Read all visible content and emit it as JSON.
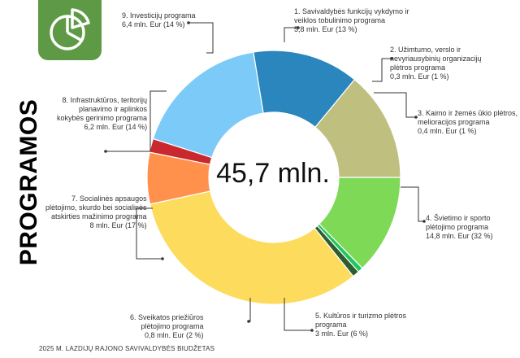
{
  "side_title": "PROGRAMOS",
  "footer": "2025 M. LAZDIJŲ RAJONO SAVIVALDYBĖS BIUDŽETAS",
  "logo_icon": "pie-chart-icon",
  "chart_data": {
    "type": "donut",
    "center_label": "45,7 mln.",
    "unit": "mln. Eur",
    "slices": [
      {
        "name": "1. Savivaldybės funkcijų vykdymo ir veiklos tobulinimo programa",
        "value_label": "5,8 mln. Eur (13 %)",
        "value": 5.8,
        "percent": 13,
        "color": "#7ed957"
      },
      {
        "name": "2. Užimtumo, verslo ir nevyriausybinių organizacijų plėtros programa",
        "value_label": "0,3 mln. Eur (1 %)",
        "value": 0.3,
        "percent": 1,
        "color": "#22c55e"
      },
      {
        "name": "3. Kaimo ir žemės ūkio plėtros, melioracijos programa",
        "value_label": "0,4 mln. Eur (1 %)",
        "value": 0.4,
        "percent": 1,
        "color": "#2f5e2e"
      },
      {
        "name": "4. Švietimo ir sporto plėtojimo programa",
        "value_label": "14,8 mln. Eur (32 %)",
        "value": 14.8,
        "percent": 32,
        "color": "#fddb5c"
      },
      {
        "name": "5. Kultūros ir turizmo plėtros programa",
        "value_label": "3 mln. Eur (6 %)",
        "value": 3.0,
        "percent": 6,
        "color": "#ff914d"
      },
      {
        "name": "6. Sveikatos priežiūros plėtojimo programa",
        "value_label": "0,8 mln. Eur (2 %)",
        "value": 0.8,
        "percent": 2,
        "color": "#c8282e"
      },
      {
        "name": "7. Socialinės apsaugos plėtojimo, skurdo bei socialinės atskirties mažinimo programa",
        "value_label": "8 mln. Eur (17 %)",
        "value": 8.0,
        "percent": 17,
        "color": "#7ccaf7"
      },
      {
        "name": "8. Infrastruktūros, teritorijų planavimo ir aplinkos kokybės gerinimo programa",
        "value_label": "6,2 mln. Eur (14 %)",
        "value": 6.2,
        "percent": 14,
        "color": "#2b86be"
      },
      {
        "name": "9. Investicijų programa",
        "value_label": "6,4 mln. Eur (14 %)",
        "value": 6.4,
        "percent": 14,
        "color": "#bfbf80"
      }
    ],
    "labels": [
      {
        "text": "1. Savivaldybės funkcijų vykdymo ir\nveiklos tobulinimo programa\n5,8 mln. Eur (13 %)"
      },
      {
        "text": "2. Užimtumo, verslo ir\nnevyriausybinių organizacijų\nplėtros programa\n0,3 mln. Eur (1 %)"
      },
      {
        "text": "3. Kaimo ir žemės ūkio plėtros,\nmelioracijos  programa\n0,4 mln. Eur (1 %)"
      },
      {
        "text": "4. Švietimo ir sporto\nplėtojimo programa\n14,8 mln. Eur (32 %)"
      },
      {
        "text": "5. Kultūros ir turizmo plėtros\nprograma\n3 mln. Eur (6 %)"
      },
      {
        "text": "6. Sveikatos priežiūros\nplėtojimo programa\n0,8 mln. Eur (2 %)"
      },
      {
        "text": "7. Socialinės apsaugos\nplėtojimo, skurdo bei  socialinės\natskirties mažinimo programa\n8 mln. Eur (17 %)"
      },
      {
        "text": "8. Infrastruktūros, teritorijų\nplanavimo ir aplinkos\nkokybės gerinimo programa\n6,2 mln. Eur (14 %)"
      },
      {
        "text": "9. Investicijų programa\n6,4 mln. Eur (14 %)"
      }
    ]
  }
}
